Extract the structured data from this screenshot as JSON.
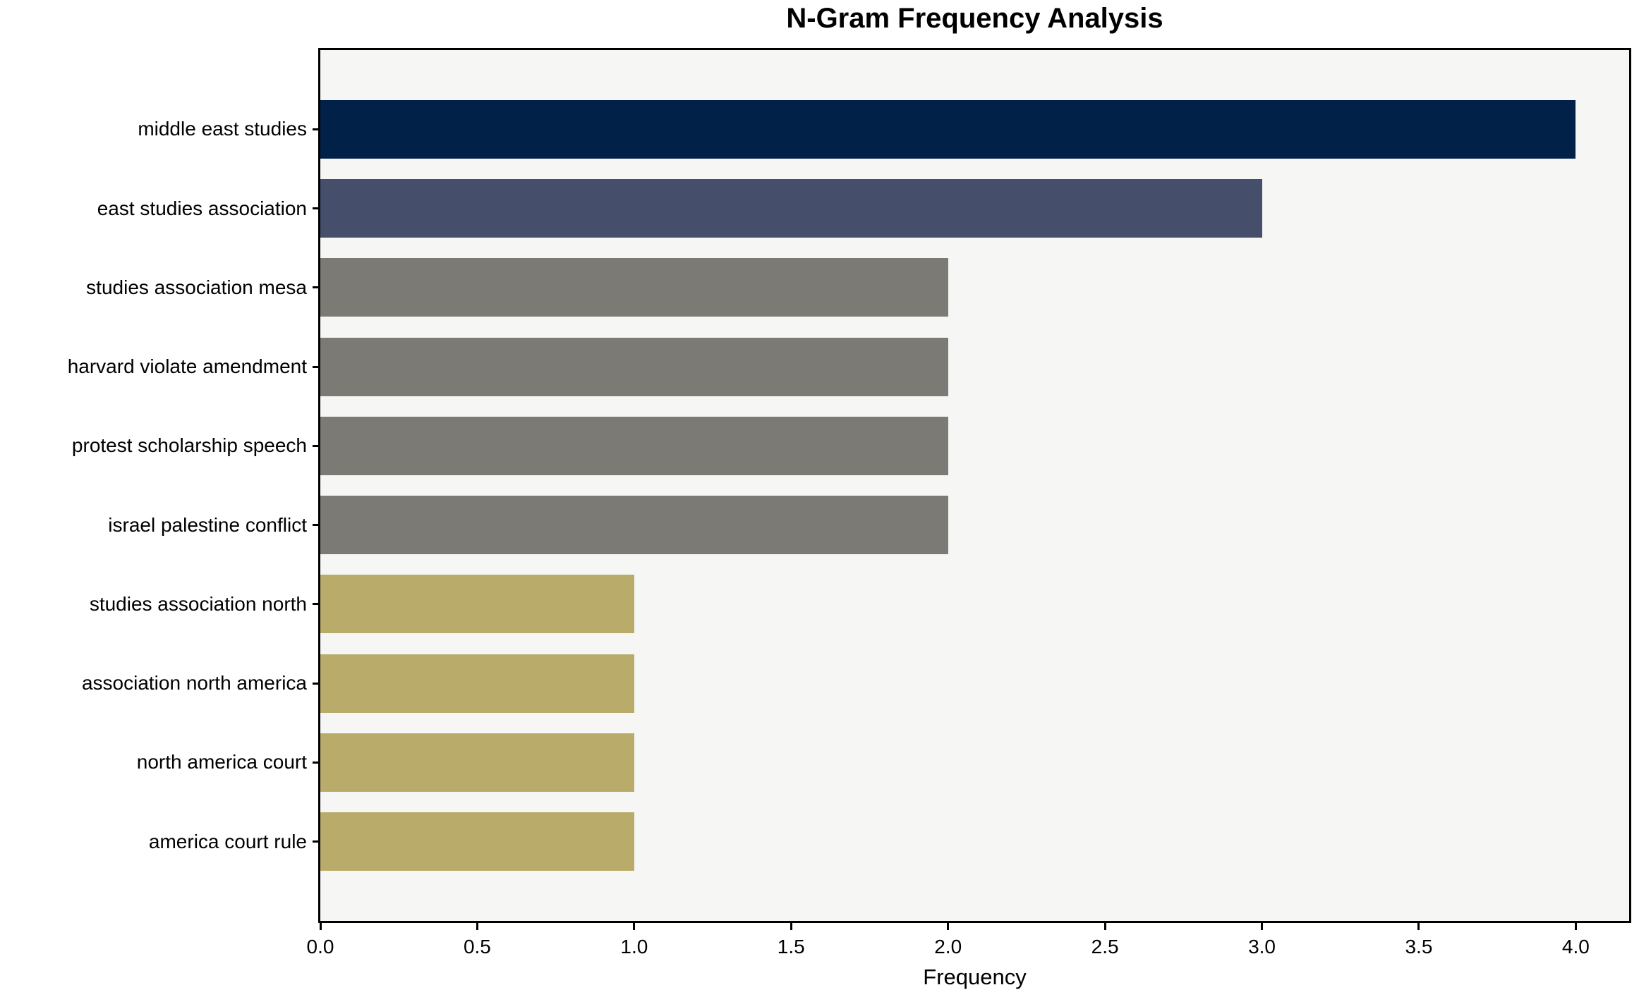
{
  "chart_data": {
    "type": "bar",
    "orientation": "horizontal",
    "title": "N-Gram Frequency Analysis",
    "xlabel": "Frequency",
    "ylabel": "",
    "categories": [
      "middle east studies",
      "east studies association",
      "studies association mesa",
      "harvard violate amendment",
      "protest scholarship speech",
      "israel palestine conflict",
      "studies association north",
      "association north america",
      "north america court",
      "america court rule"
    ],
    "values": [
      4,
      3,
      2,
      2,
      2,
      2,
      1,
      1,
      1,
      1
    ],
    "bar_colors": [
      "#012149",
      "#454e6b",
      "#7b7a74",
      "#7b7a74",
      "#7b7a74",
      "#7b7a74",
      "#b9ac6b",
      "#b9ac6b",
      "#b9ac6b",
      "#b9ac6b"
    ],
    "xticks": [
      "0.0",
      "0.5",
      "1.0",
      "1.5",
      "2.0",
      "2.5",
      "3.0",
      "3.5",
      "4.0"
    ],
    "xlim": [
      0,
      4.17
    ],
    "bar_fraction": 0.74,
    "plot_background": "#f6f6f5",
    "spine_color": "#000000",
    "text_color": "#000000",
    "grid": false,
    "legend": null
  }
}
